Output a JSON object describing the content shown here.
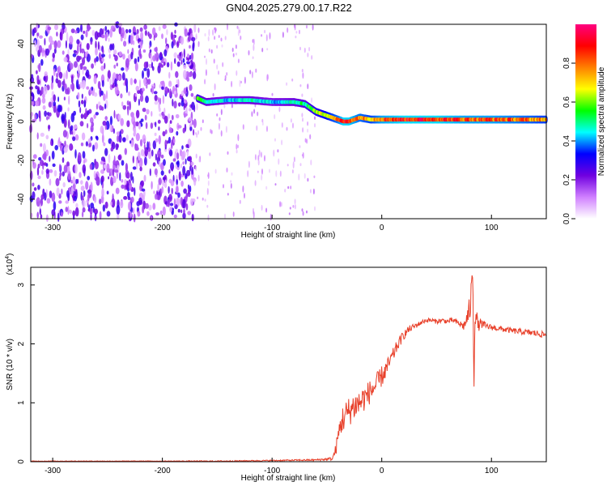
{
  "figure_title": "GN04.2025.279.00.17.R22",
  "colorbar": {
    "label": "Normalized spectral amplitude",
    "ticks": [
      "0.0",
      "0.2",
      "0.4",
      "0.6",
      "0.8"
    ],
    "tick_values": [
      0.0,
      0.2,
      0.4,
      0.6,
      0.8
    ],
    "range": [
      0,
      1
    ],
    "colors": [
      "#ffffff",
      "#d080ff",
      "#7000e0",
      "#0000ff",
      "#00ffff",
      "#00ff00",
      "#ffff00",
      "#ff8000",
      "#ff0000",
      "#ff0080"
    ]
  },
  "chart_data": [
    {
      "type": "heatmap",
      "title": "",
      "xlabel": "Height of straight line (km)",
      "ylabel": "Frequency (Hz)",
      "xlim": [
        -320,
        150
      ],
      "ylim": [
        -50,
        50
      ],
      "xticks": [
        -300,
        -200,
        -100,
        0,
        100
      ],
      "xtick_labels": [
        "-300",
        "-200",
        "-100",
        "0",
        "100"
      ],
      "yticks": [
        -40,
        -20,
        0,
        20,
        40
      ],
      "ytick_labels": [
        "-40",
        "-20",
        "0",
        "20",
        "40"
      ],
      "dominant_frequency_track": {
        "x": [
          -168,
          -160,
          -140,
          -120,
          -100,
          -80,
          -70,
          -60,
          -50,
          -40,
          -35,
          -30,
          -25,
          -20,
          -10,
          0,
          20,
          50,
          75,
          100,
          130,
          150
        ],
        "y": [
          12,
          10,
          11,
          11,
          10,
          10,
          9,
          5,
          3,
          1,
          0,
          0,
          1,
          2,
          1,
          1,
          1,
          1,
          1,
          1,
          1,
          1
        ],
        "amplitude": [
          0.6,
          0.5,
          0.45,
          0.5,
          0.45,
          0.5,
          0.55,
          0.65,
          0.75,
          0.85,
          0.95,
          0.95,
          0.9,
          0.85,
          0.8,
          0.9,
          0.95,
          0.95,
          0.9,
          0.9,
          0.85,
          0.8
        ]
      },
      "noise_region_x": [
        -320,
        -170
      ],
      "noise_amplitude": [
        0.05,
        0.3
      ]
    },
    {
      "type": "line",
      "title": "",
      "xlabel": "Height of straight line (km)",
      "ylabel": "SNR (10 * v/v)",
      "y_multiplier": "(x10^4)",
      "xlim": [
        -320,
        150
      ],
      "ylim": [
        0,
        3.3
      ],
      "xticks": [
        -300,
        -200,
        -100,
        0,
        100
      ],
      "xtick_labels": [
        "-300",
        "-200",
        "-100",
        "0",
        "100"
      ],
      "yticks": [
        0,
        1,
        2,
        3
      ],
      "ytick_labels": [
        "0",
        "1",
        "2",
        "3"
      ],
      "series": [
        {
          "color": "#e8402a",
          "x": [
            -320,
            -300,
            -250,
            -200,
            -150,
            -100,
            -60,
            -45,
            -42,
            -40,
            -38,
            -35,
            -30,
            -25,
            -20,
            -15,
            -10,
            -5,
            0,
            5,
            10,
            15,
            20,
            25,
            30,
            35,
            40,
            45,
            50,
            55,
            60,
            65,
            70,
            75,
            78,
            80,
            82,
            83,
            84,
            85,
            86,
            88,
            90,
            95,
            100,
            110,
            120,
            130,
            140,
            150
          ],
          "values": [
            0.01,
            0.01,
            0.01,
            0.01,
            0.01,
            0.02,
            0.03,
            0.05,
            0.2,
            0.4,
            0.6,
            0.75,
            0.85,
            0.95,
            1.0,
            1.1,
            1.2,
            1.3,
            1.45,
            1.6,
            1.8,
            2.0,
            2.15,
            2.25,
            2.3,
            2.35,
            2.4,
            2.4,
            2.38,
            2.4,
            2.38,
            2.4,
            2.35,
            2.3,
            2.45,
            2.55,
            2.9,
            3.3,
            1.15,
            2.6,
            2.45,
            2.3,
            2.35,
            2.3,
            2.28,
            2.25,
            2.22,
            2.2,
            2.18,
            2.15
          ],
          "noise": [
            0.005,
            0.005,
            0.005,
            0.005,
            0.008,
            0.01,
            0.015,
            0.03,
            0.1,
            0.15,
            0.2,
            0.25,
            0.25,
            0.25,
            0.25,
            0.22,
            0.2,
            0.2,
            0.18,
            0.15,
            0.12,
            0.1,
            0.08,
            0.06,
            0.05,
            0.04,
            0.04,
            0.04,
            0.04,
            0.04,
            0.04,
            0.05,
            0.05,
            0.08,
            0.15,
            0.25,
            0.3,
            0.1,
            0.05,
            0.25,
            0.2,
            0.1,
            0.08,
            0.06,
            0.05,
            0.05,
            0.05,
            0.05,
            0.06,
            0.05
          ]
        }
      ]
    }
  ]
}
